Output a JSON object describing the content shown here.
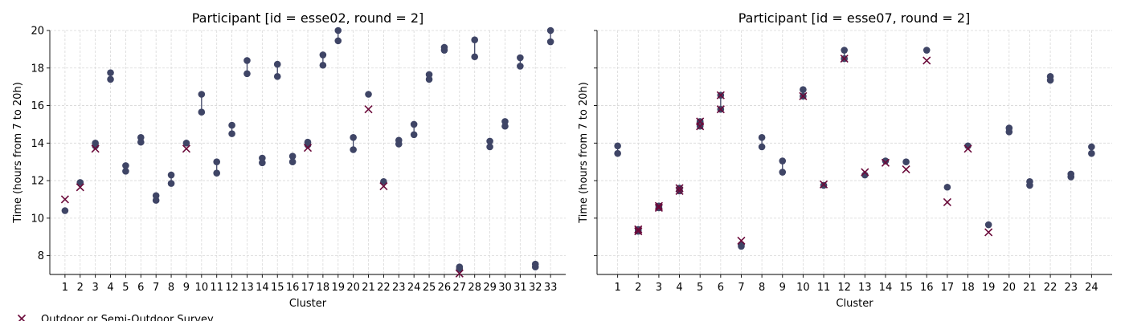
{
  "colors": {
    "dot": "#3f4566",
    "cross": "#6b0a3a"
  },
  "legend": {
    "label": "Outdoor or Semi-Outdoor Survey"
  },
  "chart_data": [
    {
      "type": "scatter",
      "title": "Participant [id = esse02, round = 2]",
      "xlabel": "Cluster",
      "ylabel": "Time (hours from 7 to 20h)",
      "ylim": [
        7,
        20
      ],
      "yticks": [
        8,
        10,
        12,
        14,
        16,
        18,
        20
      ],
      "grid": true,
      "clusters": [
        {
          "x": 1,
          "low": 10.4,
          "high": 10.4,
          "cross": [
            11.0
          ]
        },
        {
          "x": 2,
          "low": 11.9,
          "high": 11.9,
          "cross": [
            11.65
          ]
        },
        {
          "x": 3,
          "low": 13.85,
          "high": 14.0,
          "cross": [
            13.7
          ]
        },
        {
          "x": 4,
          "low": 17.4,
          "high": 17.75,
          "cross": []
        },
        {
          "x": 5,
          "low": 12.5,
          "high": 12.8,
          "cross": []
        },
        {
          "x": 6,
          "low": 14.05,
          "high": 14.3,
          "cross": []
        },
        {
          "x": 7,
          "low": 10.95,
          "high": 11.2,
          "cross": []
        },
        {
          "x": 8,
          "low": 11.85,
          "high": 12.3,
          "cross": []
        },
        {
          "x": 9,
          "low": 14.0,
          "high": 14.0,
          "cross": [
            13.7
          ]
        },
        {
          "x": 10,
          "low": 15.65,
          "high": 16.6,
          "cross": []
        },
        {
          "x": 11,
          "low": 12.4,
          "high": 13.0,
          "cross": []
        },
        {
          "x": 12,
          "low": 14.5,
          "high": 14.95,
          "cross": []
        },
        {
          "x": 13,
          "low": 17.7,
          "high": 18.4,
          "cross": []
        },
        {
          "x": 14,
          "low": 12.95,
          "high": 13.2,
          "cross": []
        },
        {
          "x": 15,
          "low": 17.55,
          "high": 18.2,
          "cross": []
        },
        {
          "x": 16,
          "low": 13.0,
          "high": 13.3,
          "cross": []
        },
        {
          "x": 17,
          "low": 13.9,
          "high": 14.05,
          "cross": [
            13.75
          ]
        },
        {
          "x": 18,
          "low": 18.15,
          "high": 18.7,
          "cross": []
        },
        {
          "x": 19,
          "low": 19.45,
          "high": 20.0,
          "cross": []
        },
        {
          "x": 20,
          "low": 13.65,
          "high": 14.3,
          "cross": []
        },
        {
          "x": 21,
          "low": 16.6,
          "high": 16.6,
          "cross": [
            15.8
          ]
        },
        {
          "x": 22,
          "low": 11.95,
          "high": 11.95,
          "cross": [
            11.7
          ]
        },
        {
          "x": 23,
          "low": 13.95,
          "high": 14.15,
          "cross": []
        },
        {
          "x": 24,
          "low": 14.45,
          "high": 15.0,
          "cross": []
        },
        {
          "x": 25,
          "low": 17.4,
          "high": 17.65,
          "cross": []
        },
        {
          "x": 26,
          "low": 18.95,
          "high": 19.1,
          "cross": []
        },
        {
          "x": 27,
          "low": 7.3,
          "high": 7.4,
          "cross": [
            7.05
          ]
        },
        {
          "x": 28,
          "low": 18.6,
          "high": 19.5,
          "cross": []
        },
        {
          "x": 29,
          "low": 13.8,
          "high": 14.1,
          "cross": []
        },
        {
          "x": 30,
          "low": 14.9,
          "high": 15.15,
          "cross": []
        },
        {
          "x": 31,
          "low": 18.1,
          "high": 18.55,
          "cross": []
        },
        {
          "x": 32,
          "low": 7.4,
          "high": 7.55,
          "cross": []
        },
        {
          "x": 33,
          "low": 19.4,
          "high": 20.0,
          "cross": []
        }
      ]
    },
    {
      "type": "scatter",
      "title": "Participant [id = esse07, round = 2]",
      "xlabel": "Cluster",
      "ylabel": "Time (hours from 7 to 20h)",
      "ylim": [
        7,
        20
      ],
      "yticks": [
        8,
        10,
        12,
        14,
        16,
        18,
        20
      ],
      "grid": true,
      "clusters": [
        {
          "x": 1,
          "low": 13.45,
          "high": 13.85,
          "cross": []
        },
        {
          "x": 2,
          "low": 9.3,
          "high": 9.4,
          "cross": [
            9.3,
            9.4
          ]
        },
        {
          "x": 3,
          "low": 10.55,
          "high": 10.65,
          "cross": [
            10.55,
            10.65
          ]
        },
        {
          "x": 4,
          "low": 11.45,
          "high": 11.6,
          "cross": [
            11.45,
            11.6
          ]
        },
        {
          "x": 5,
          "low": 14.9,
          "high": 15.15,
          "cross": [
            14.9,
            15.15
          ]
        },
        {
          "x": 6,
          "low": 15.8,
          "high": 16.55,
          "cross": [
            15.8,
            16.55
          ]
        },
        {
          "x": 7,
          "low": 8.5,
          "high": 8.6,
          "cross": [
            8.8
          ]
        },
        {
          "x": 8,
          "low": 13.8,
          "high": 14.3,
          "cross": []
        },
        {
          "x": 9,
          "low": 12.45,
          "high": 13.05,
          "cross": []
        },
        {
          "x": 10,
          "low": 16.5,
          "high": 16.85,
          "cross": [
            16.5
          ]
        },
        {
          "x": 11,
          "low": 11.75,
          "high": 11.75,
          "cross": [
            11.8
          ]
        },
        {
          "x": 12,
          "low": 18.5,
          "high": 18.95,
          "cross": [
            18.5
          ]
        },
        {
          "x": 13,
          "low": 12.3,
          "high": 12.3,
          "cross": [
            12.45
          ]
        },
        {
          "x": 14,
          "low": 13.05,
          "high": 13.05,
          "cross": [
            12.95
          ]
        },
        {
          "x": 15,
          "low": 13.0,
          "high": 13.0,
          "cross": [
            12.6
          ]
        },
        {
          "x": 16,
          "low": 18.95,
          "high": 18.95,
          "cross": [
            18.4
          ]
        },
        {
          "x": 17,
          "low": 11.65,
          "high": 11.65,
          "cross": [
            10.85
          ]
        },
        {
          "x": 18,
          "low": 13.85,
          "high": 13.85,
          "cross": [
            13.7
          ]
        },
        {
          "x": 19,
          "low": 9.65,
          "high": 9.65,
          "cross": [
            9.25
          ]
        },
        {
          "x": 20,
          "low": 14.6,
          "high": 14.8,
          "cross": []
        },
        {
          "x": 21,
          "low": 11.75,
          "high": 11.95,
          "cross": []
        },
        {
          "x": 22,
          "low": 17.35,
          "high": 17.55,
          "cross": []
        },
        {
          "x": 23,
          "low": 12.2,
          "high": 12.35,
          "cross": []
        },
        {
          "x": 24,
          "low": 13.45,
          "high": 13.8,
          "cross": []
        }
      ]
    }
  ]
}
